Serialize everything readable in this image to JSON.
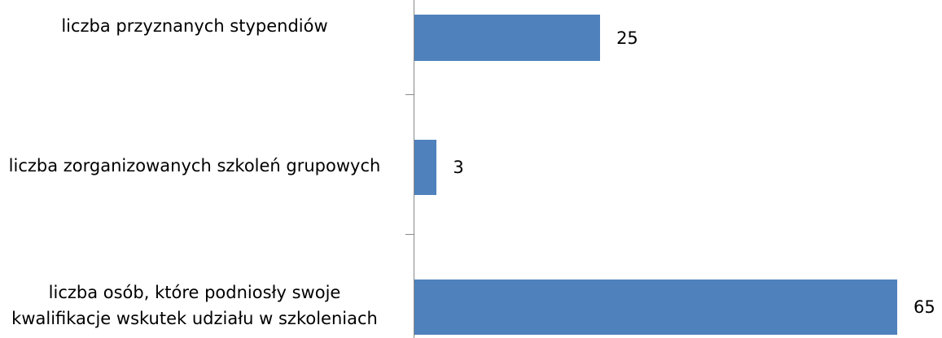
{
  "chart_data": {
    "type": "bar",
    "orientation": "horizontal",
    "categories": [
      "liczba przyznanych stypendiów",
      "liczba zorganizowanych szkoleń grupowych",
      "liczba osób, które podniosły swoje kwalifikacje wskutek udziału w szkoleniach"
    ],
    "values": [
      25,
      3,
      65
    ],
    "color": "#4f81bd"
  }
}
